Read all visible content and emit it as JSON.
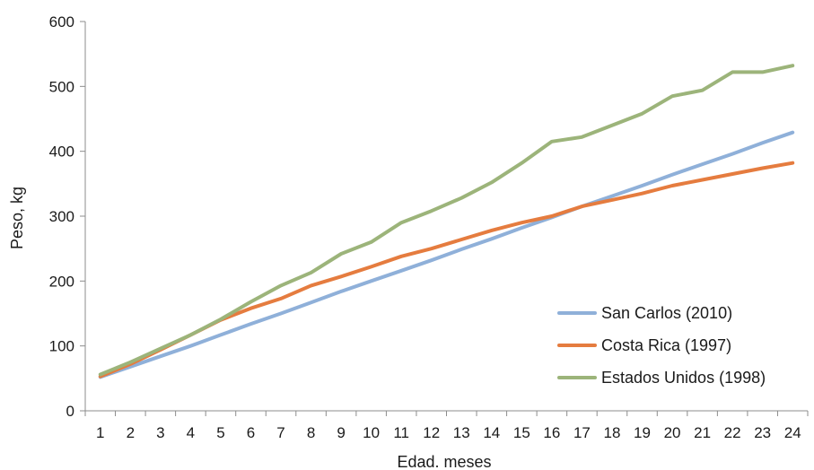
{
  "chart_data": {
    "type": "line",
    "title": "",
    "xlabel": "Edad. meses",
    "ylabel": "Peso, kg",
    "x": [
      1,
      2,
      3,
      4,
      5,
      6,
      7,
      8,
      9,
      10,
      11,
      12,
      13,
      14,
      15,
      16,
      17,
      18,
      19,
      20,
      21,
      22,
      23,
      24
    ],
    "x_tick_labels": [
      "1",
      "2",
      "3",
      "4",
      "5",
      "6",
      "7",
      "8",
      "9",
      "10",
      "11",
      "12",
      "13",
      "14",
      "15",
      "16",
      "17",
      "18",
      "19",
      "20",
      "21",
      "22",
      "23",
      "24"
    ],
    "ylim": [
      0,
      600
    ],
    "y_ticks": [
      0,
      100,
      200,
      300,
      400,
      500,
      600
    ],
    "y_tick_labels": [
      "0",
      "100",
      "200",
      "300",
      "400",
      "500",
      "600"
    ],
    "grid": false,
    "legend_position": "bottom-right",
    "series": [
      {
        "name": "San Carlos (2010)",
        "color": "#8fb0d9",
        "values": [
          52,
          68,
          84,
          100,
          117,
          134,
          150,
          167,
          184,
          200,
          216,
          232,
          249,
          265,
          282,
          298,
          315,
          331,
          347,
          364,
          380,
          396,
          413,
          429
        ]
      },
      {
        "name": "Costa Rica (1997)",
        "color": "#e57c3f",
        "values": [
          53,
          72,
          94,
          117,
          140,
          158,
          173,
          193,
          207,
          222,
          238,
          250,
          264,
          278,
          290,
          300,
          315,
          325,
          335,
          347,
          356,
          365,
          374,
          382
        ]
      },
      {
        "name": "Estados Unidos (1998)",
        "color": "#9cb47a",
        "values": [
          56,
          75,
          96,
          117,
          141,
          168,
          193,
          213,
          242,
          260,
          290,
          308,
          328,
          352,
          382,
          415,
          422,
          440,
          458,
          485,
          494,
          522,
          522,
          532
        ]
      }
    ]
  }
}
